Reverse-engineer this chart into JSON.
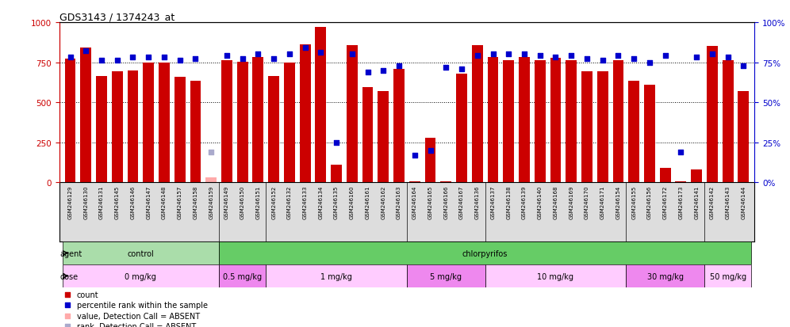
{
  "title": "GDS3143 / 1374243_at",
  "samples": [
    "GSM246129",
    "GSM246130",
    "GSM246131",
    "GSM246145",
    "GSM246146",
    "GSM246147",
    "GSM246148",
    "GSM246157",
    "GSM246158",
    "GSM246159",
    "GSM246149",
    "GSM246150",
    "GSM246151",
    "GSM246152",
    "GSM246132",
    "GSM246133",
    "GSM246134",
    "GSM246135",
    "GSM246160",
    "GSM246161",
    "GSM246162",
    "GSM246163",
    "GSM246164",
    "GSM246165",
    "GSM246166",
    "GSM246167",
    "GSM246136",
    "GSM246137",
    "GSM246138",
    "GSM246139",
    "GSM246140",
    "GSM246168",
    "GSM246169",
    "GSM246170",
    "GSM246171",
    "GSM246154",
    "GSM246155",
    "GSM246156",
    "GSM246172",
    "GSM246173",
    "GSM246141",
    "GSM246142",
    "GSM246143",
    "GSM246144"
  ],
  "bar_values": [
    770,
    840,
    665,
    695,
    700,
    750,
    750,
    660,
    635,
    30,
    760,
    755,
    780,
    665,
    750,
    860,
    970,
    110,
    855,
    595,
    570,
    710,
    5,
    280,
    5,
    680,
    855,
    780,
    760,
    780,
    760,
    775,
    760,
    695,
    695,
    760,
    635,
    610,
    90,
    5,
    80,
    850,
    760,
    570
  ],
  "bar_absent": [
    false,
    false,
    false,
    false,
    false,
    false,
    false,
    false,
    false,
    true,
    false,
    false,
    false,
    false,
    false,
    false,
    false,
    false,
    false,
    false,
    false,
    false,
    false,
    false,
    false,
    false,
    false,
    false,
    false,
    false,
    false,
    false,
    false,
    false,
    false,
    false,
    false,
    false,
    false,
    false,
    false,
    false,
    false,
    false
  ],
  "rank_values": [
    78,
    82,
    76,
    76,
    78,
    78,
    78,
    76,
    77,
    19,
    79,
    77,
    80,
    77,
    80,
    84,
    81,
    25,
    80,
    69,
    70,
    73,
    17,
    20,
    72,
    71,
    79,
    80,
    80,
    80,
    79,
    78,
    79,
    77,
    76,
    79,
    77,
    75,
    79,
    19,
    78,
    80,
    78,
    73
  ],
  "rank_absent": [
    false,
    false,
    false,
    false,
    false,
    false,
    false,
    false,
    false,
    true,
    false,
    false,
    false,
    false,
    false,
    false,
    false,
    false,
    false,
    false,
    false,
    false,
    false,
    false,
    false,
    false,
    false,
    false,
    false,
    false,
    false,
    false,
    false,
    false,
    false,
    false,
    false,
    false,
    false,
    false,
    false,
    false,
    false,
    false
  ],
  "bar_color": "#cc0000",
  "bar_absent_color": "#ffaaaa",
  "rank_color": "#0000cc",
  "rank_absent_color": "#aaaacc",
  "ylim_left": [
    0,
    1000
  ],
  "ylim_right": [
    0,
    100
  ],
  "yticks_left": [
    0,
    250,
    500,
    750,
    1000
  ],
  "yticks_right": [
    0,
    25,
    50,
    75,
    100
  ],
  "ytick_labels_left": [
    "0",
    "250",
    "500",
    "750",
    "1000"
  ],
  "ytick_labels_right": [
    "0%",
    "25%",
    "50%",
    "75%",
    "100%"
  ],
  "agent_groups": [
    {
      "label": "control",
      "color": "#aaddaa",
      "start": 0,
      "end": 9
    },
    {
      "label": "chlorpyrifos",
      "color": "#66cc66",
      "start": 10,
      "end": 43
    }
  ],
  "dose_groups": [
    {
      "label": "0 mg/kg",
      "color": "#ffccff",
      "start": 0,
      "end": 9
    },
    {
      "label": "0.5 mg/kg",
      "color": "#ee88ee",
      "start": 10,
      "end": 12
    },
    {
      "label": "1 mg/kg",
      "color": "#ffccff",
      "start": 13,
      "end": 21
    },
    {
      "label": "5 mg/kg",
      "color": "#ee88ee",
      "start": 22,
      "end": 26
    },
    {
      "label": "10 mg/kg",
      "color": "#ffccff",
      "start": 27,
      "end": 35
    },
    {
      "label": "30 mg/kg",
      "color": "#ee88ee",
      "start": 36,
      "end": 40
    },
    {
      "label": "50 mg/kg",
      "color": "#ffccff",
      "start": 41,
      "end": 43
    }
  ],
  "legend_items": [
    {
      "label": "count",
      "color": "#cc0000"
    },
    {
      "label": "percentile rank within the sample",
      "color": "#0000cc"
    },
    {
      "label": "value, Detection Call = ABSENT",
      "color": "#ffaaaa"
    },
    {
      "label": "rank, Detection Call = ABSENT",
      "color": "#aaaacc"
    }
  ],
  "background_color": "#ffffff",
  "bar_width": 0.7,
  "xtick_bg": "#dddddd"
}
